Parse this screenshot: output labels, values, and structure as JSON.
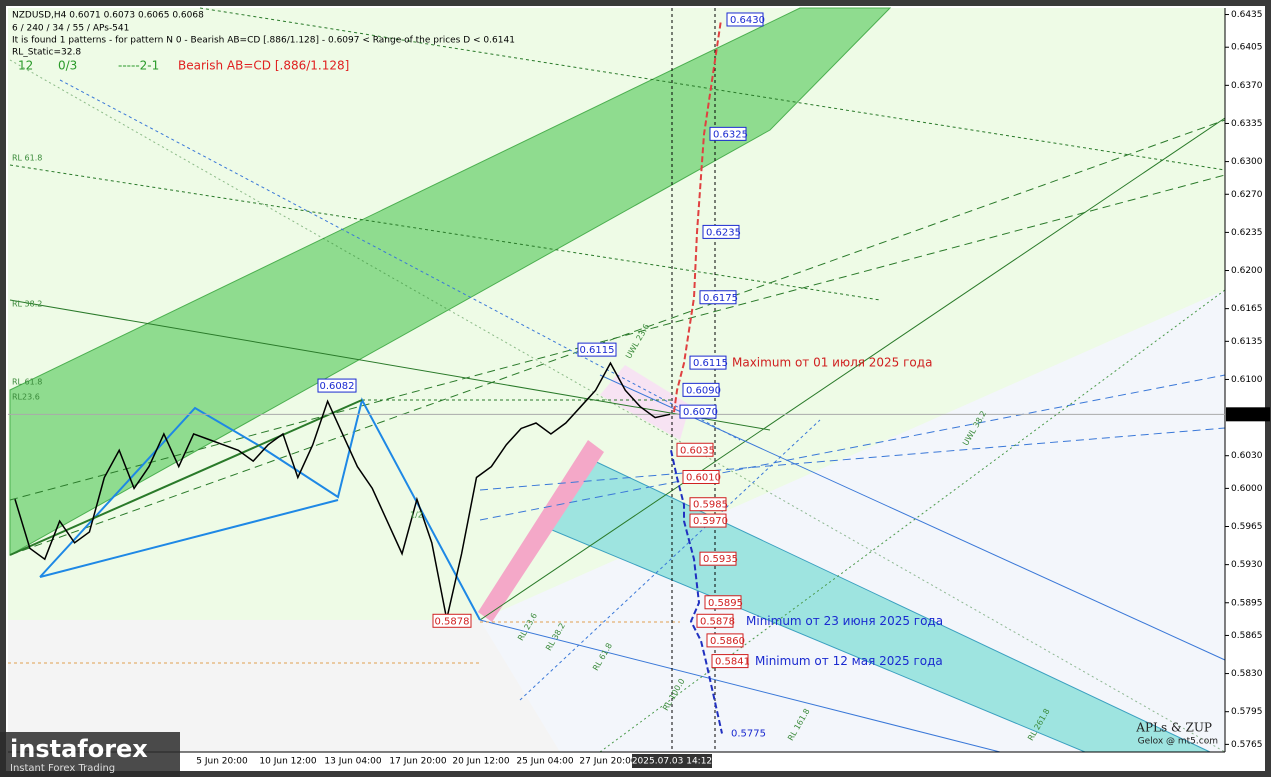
{
  "header": {
    "symbol_line": "NZDUSD,H4  0.6071 0.6073 0.6065 0.6068",
    "settings": "6 / 240 / 34 / 55 / APs-541",
    "pattern_line": "It is found 1 patterns  -  for pattern N 0 - Bearish AB=CD [.886/1.128] - 0.6097 < Range of the prices D < 0.6141",
    "static": "RL_Static=32.8",
    "count": "12",
    "ratio": "0/3",
    "code": "-----2-1",
    "pattern": "Bearish AB=CD [.886/1.128]"
  },
  "chart_data": {
    "type": "line",
    "color": "#000000",
    "values": [
      0.599,
      0.5945,
      0.5935,
      0.597,
      0.595,
      0.596,
      0.601,
      0.6035,
      0.6,
      0.602,
      0.605,
      0.602,
      0.605,
      0.6045,
      0.604,
      0.6035,
      0.6025,
      0.604,
      0.605,
      0.601,
      0.604,
      0.608,
      0.605,
      0.602,
      0.6,
      0.597,
      0.594,
      0.599,
      0.595,
      0.588,
      0.594,
      0.601,
      0.602,
      0.604,
      0.6055,
      0.606,
      0.605,
      0.606,
      0.6075,
      0.609,
      0.6115,
      0.609,
      0.6075,
      0.6065,
      0.6068
    ],
    "ylim": [
      0.5758,
      0.6441
    ],
    "yticks": [
      0.6435,
      0.6405,
      {
        "value": 0.637,
        "label": "0.6370"
      },
      0.6335,
      {
        "value": 0.63,
        "label": "0.6300"
      },
      {
        "value": 0.627,
        "label": "0.6270"
      },
      0.6235,
      {
        "value": 0.62,
        "label": "0.6200"
      },
      0.6165,
      0.6135,
      {
        "value": 0.61,
        "label": "0.6100"
      },
      {
        "value": 0.603,
        "label": "0.6030"
      },
      {
        "value": 0.6,
        "label": "0.6000"
      },
      0.5965,
      {
        "value": 0.593,
        "label": "0.5930"
      },
      0.5895,
      0.5865,
      {
        "value": 0.583,
        "label": "0.5830"
      },
      0.5795,
      0.5765
    ],
    "x_labels": [
      "5 Jun 20:00",
      "10 Jun 12:00",
      "13 Jun 04:00",
      "17 Jun 20:00",
      "20 Jun 12:00",
      "25 Jun 04:00",
      "27 Jun 20:00",
      "2025.07.03 14:12"
    ],
    "current_price": 0.6068,
    "pivots": [
      0.6082,
      0.5878,
      0.6115
    ],
    "forecast_up": {
      "color": "#e04040",
      "values": [
        0.607,
        0.609,
        0.6115,
        0.6175,
        0.6235,
        0.6325,
        0.643
      ],
      "value_labels": [
        "0.6070",
        "0.6090",
        "0.6115",
        "0.6175",
        "0.6235",
        "0.6325",
        "0.6430"
      ]
    },
    "forecast_down": {
      "color": "#2030c0",
      "values": [
        0.6035,
        0.601,
        0.5985,
        0.597,
        0.5935,
        0.5895,
        0.5878,
        0.586,
        0.5841,
        0.5775
      ],
      "value_labels": [
        "0.6035",
        "0.6010",
        "0.5985",
        "0.5970",
        "0.5935",
        "0.5895",
        "0.5878",
        "0.5860",
        "0.5841",
        "0.5775"
      ]
    },
    "annotations": [
      "Maximum от 01 июля 2025 года",
      "Minimum от 23 июня 2025  года",
      "Minimum от 12 мая 2025 года"
    ],
    "line_labels": [
      "RL 61.8",
      "RL 38.2",
      "RL 61.8",
      "RL23.6",
      "UWL 38.2",
      "UWL 23.6",
      "RL 23.6",
      "RL 38.2",
      "RL 61.8",
      "RL 100.0",
      "RL 161.8",
      "RL 261.8",
      "1/2"
    ]
  },
  "watermark": {
    "brand": "instaforex",
    "tagline": "Instant Forex Trading",
    "author": "APLs & ZUP",
    "site": "Gelox @ mt5.com"
  }
}
